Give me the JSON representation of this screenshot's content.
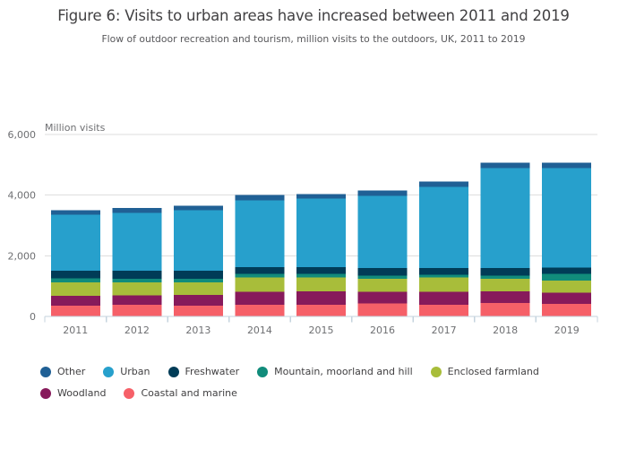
{
  "header": {
    "title": "Figure 6: Visits to urban areas have increased between 2011 and 2019",
    "subtitle": "Flow of outdoor recreation and tourism, million visits to the outdoors, UK, 2011 to 2019"
  },
  "chart_data": {
    "type": "bar",
    "stacked": true,
    "title": "Figure 6: Visits to urban areas have increased between 2011 and 2019",
    "subtitle": "Flow of outdoor recreation and tourism, million visits to the outdoors, UK, 2011 to 2019",
    "ylabel": "Million visits",
    "xlabel": "",
    "ylim": [
      0,
      6000
    ],
    "yticks": [
      0,
      2000,
      4000,
      6000
    ],
    "ytick_labels": [
      "0",
      "2,000",
      "4,000",
      "6,000"
    ],
    "grid": true,
    "legend_position": "bottom",
    "categories": [
      "2011",
      "2012",
      "2013",
      "2014",
      "2015",
      "2016",
      "2017",
      "2018",
      "2019"
    ],
    "series": [
      {
        "name": "Coastal and marine",
        "color": "#f66068",
        "values": [
          350,
          380,
          350,
          380,
          380,
          430,
          390,
          440,
          420
        ]
      },
      {
        "name": "Woodland",
        "color": "#871a5b",
        "values": [
          330,
          320,
          360,
          430,
          450,
          380,
          420,
          390,
          370
        ]
      },
      {
        "name": "Enclosed farmland",
        "color": "#a8bd3a",
        "values": [
          450,
          430,
          420,
          470,
          460,
          430,
          470,
          410,
          390
        ]
      },
      {
        "name": "Mountain, moorland and hill",
        "color": "#118c7b",
        "values": [
          120,
          110,
          110,
          120,
          110,
          110,
          90,
          110,
          230
        ]
      },
      {
        "name": "Freshwater",
        "color": "#003c57",
        "values": [
          260,
          270,
          270,
          230,
          230,
          240,
          220,
          250,
          200
        ]
      },
      {
        "name": "Urban",
        "color": "#27a0cc",
        "values": [
          1840,
          1900,
          1990,
          2200,
          2250,
          2380,
          2680,
          3290,
          3280
        ]
      },
      {
        "name": "Other",
        "color": "#206095",
        "values": [
          150,
          160,
          150,
          180,
          160,
          180,
          180,
          180,
          180
        ]
      }
    ],
    "totals": [
      3500,
      3570,
      3650,
      4010,
      4040,
      4150,
      4450,
      5070,
      5070
    ],
    "legend_rows": [
      [
        "Other",
        "Urban",
        "Freshwater",
        "Mountain, moorland and hill",
        "Enclosed farmland"
      ],
      [
        "Woodland",
        "Coastal and marine"
      ]
    ],
    "colors": {
      "grid": "#dedede",
      "axis": "#c4d3de",
      "tick_label": "#6e6f72",
      "axis_title": "#6e6f72"
    }
  }
}
